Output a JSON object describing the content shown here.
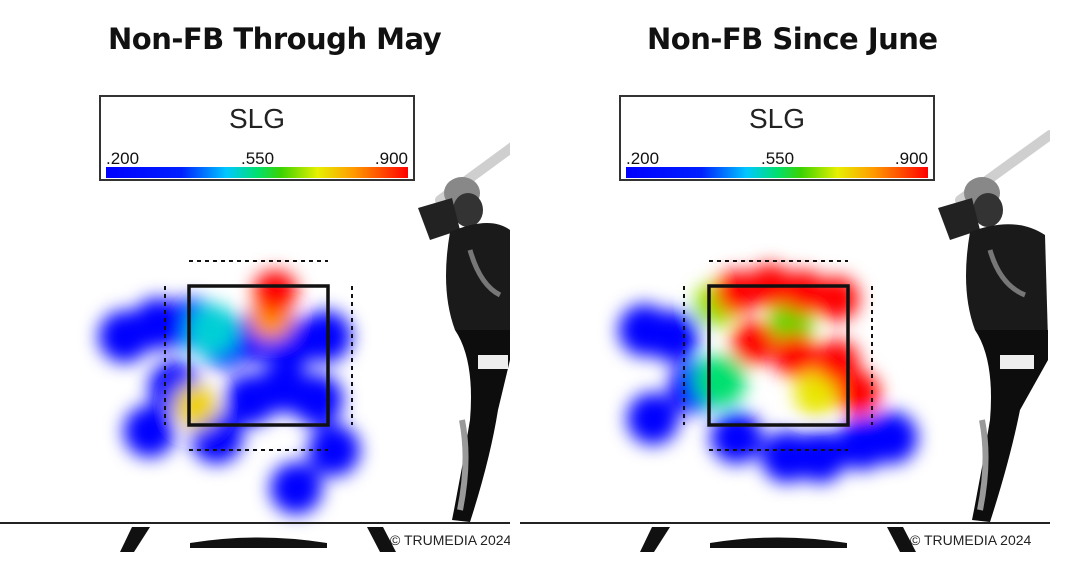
{
  "panels": [
    {
      "title": "Non-FB Through May",
      "legend_title": "SLG",
      "copyright": "© TRUMEDIA 2024"
    },
    {
      "title": "Non-FB Since June",
      "legend_title": "SLG",
      "copyright": "© TRUMEDIA 2024"
    }
  ],
  "colors": {
    "low": "#0000ff",
    "mid": "#00e070",
    "high": "#ff0000"
  },
  "chart_data": [
    {
      "type": "heatmap",
      "title": "Non-FB Through May",
      "metric": "SLG",
      "scale": {
        "min": 0.2,
        "mid": 0.55,
        "max": 0.9,
        "tick_labels": [
          ".200",
          ".550",
          ".900"
        ]
      },
      "x_range": [
        -2,
        2
      ],
      "y_range": [
        0,
        5
      ],
      "hotspots": [
        {
          "x": -1.6,
          "y": 1.7,
          "slg": 0.2
        },
        {
          "x": -1.2,
          "y": 1.8,
          "slg": 0.2
        },
        {
          "x": -0.8,
          "y": 1.8,
          "slg": 0.22
        },
        {
          "x": -0.4,
          "y": 1.65,
          "slg": 0.2
        },
        {
          "x": 0.0,
          "y": 1.7,
          "slg": 0.2
        },
        {
          "x": 0.4,
          "y": 1.65,
          "slg": 0.2
        },
        {
          "x": 0.8,
          "y": 1.7,
          "slg": 0.2
        },
        {
          "x": -1.0,
          "y": 1.3,
          "slg": 0.2
        },
        {
          "x": -0.1,
          "y": 1.2,
          "slg": 0.2
        },
        {
          "x": 0.3,
          "y": 1.3,
          "slg": 0.2
        },
        {
          "x": 0.7,
          "y": 1.2,
          "slg": 0.2
        },
        {
          "x": -0.55,
          "y": 1.75,
          "slg": 0.5
        },
        {
          "x": -0.75,
          "y": 1.15,
          "slg": 0.72
        },
        {
          "x": 0.15,
          "y": 1.85,
          "slg": 0.78
        },
        {
          "x": 0.2,
          "y": 2.05,
          "slg": 0.9
        },
        {
          "x": -0.5,
          "y": 0.9,
          "slg": 0.2
        },
        {
          "x": 0.9,
          "y": 0.8,
          "slg": 0.2
        },
        {
          "x": -1.3,
          "y": 0.95,
          "slg": 0.2
        },
        {
          "x": 0.45,
          "y": 0.5,
          "slg": 0.2
        }
      ]
    },
    {
      "type": "heatmap",
      "title": "Non-FB Since June",
      "metric": "SLG",
      "scale": {
        "min": 0.2,
        "mid": 0.55,
        "max": 0.9,
        "tick_labels": [
          ".200",
          ".550",
          ".900"
        ]
      },
      "x_range": [
        -2,
        2
      ],
      "y_range": [
        0,
        5
      ],
      "hotspots": [
        {
          "x": -1.6,
          "y": 1.75,
          "slg": 0.2
        },
        {
          "x": -1.25,
          "y": 1.7,
          "slg": 0.2
        },
        {
          "x": -1.5,
          "y": 1.05,
          "slg": 0.2
        },
        {
          "x": -1.0,
          "y": 1.3,
          "slg": 0.2
        },
        {
          "x": -0.5,
          "y": 0.9,
          "slg": 0.2
        },
        {
          "x": 0.1,
          "y": 0.75,
          "slg": 0.2
        },
        {
          "x": 0.5,
          "y": 0.75,
          "slg": 0.2
        },
        {
          "x": 1.0,
          "y": 0.85,
          "slg": 0.2
        },
        {
          "x": 1.35,
          "y": 0.9,
          "slg": 0.2
        },
        {
          "x": -0.75,
          "y": 1.95,
          "slg": 0.65
        },
        {
          "x": -0.7,
          "y": 1.35,
          "slg": 0.55
        },
        {
          "x": -0.5,
          "y": 2.05,
          "slg": 0.9
        },
        {
          "x": -0.1,
          "y": 2.1,
          "slg": 0.9
        },
        {
          "x": 0.3,
          "y": 2.05,
          "slg": 0.9
        },
        {
          "x": 0.7,
          "y": 2.0,
          "slg": 0.9
        },
        {
          "x": -0.3,
          "y": 1.65,
          "slg": 0.9
        },
        {
          "x": 0.2,
          "y": 1.55,
          "slg": 0.9
        },
        {
          "x": 0.7,
          "y": 1.5,
          "slg": 0.9
        },
        {
          "x": 0.95,
          "y": 1.25,
          "slg": 0.9
        },
        {
          "x": 0.15,
          "y": 1.8,
          "slg": 0.62
        },
        {
          "x": 0.45,
          "y": 1.25,
          "slg": 0.7
        }
      ]
    }
  ]
}
